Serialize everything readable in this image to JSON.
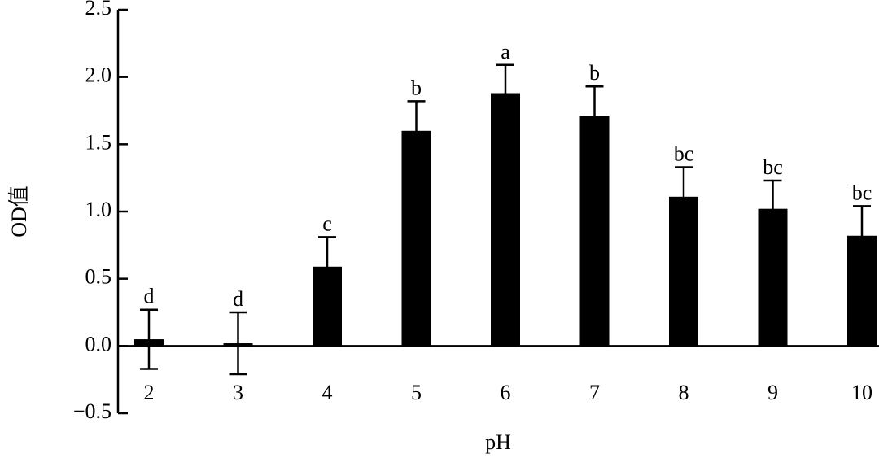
{
  "chart_data": {
    "type": "bar",
    "x_label": "pH",
    "y_label": "OD值",
    "categories": [
      "2",
      "3",
      "4",
      "5",
      "6",
      "7",
      "8",
      "9",
      "10"
    ],
    "values": [
      0.05,
      0.02,
      0.59,
      1.6,
      1.88,
      1.71,
      1.11,
      1.02,
      0.82
    ],
    "errors": [
      0.22,
      0.23,
      0.22,
      0.22,
      0.21,
      0.22,
      0.22,
      0.21,
      0.22
    ],
    "significance_letters": [
      "d",
      "d",
      "c",
      "b",
      "a",
      "b",
      "bc",
      "bc",
      "bc"
    ],
    "color": "#000000",
    "ylim": [
      -0.5,
      2.5
    ],
    "yticks": [
      {
        "value": -0.5,
        "label": "−0.5"
      },
      {
        "value": 0,
        "label": "0.0"
      },
      0.5,
      {
        "value": 1,
        "label": "1.0"
      },
      1.5,
      {
        "value": 2,
        "label": "2.0"
      },
      2.5
    ]
  }
}
